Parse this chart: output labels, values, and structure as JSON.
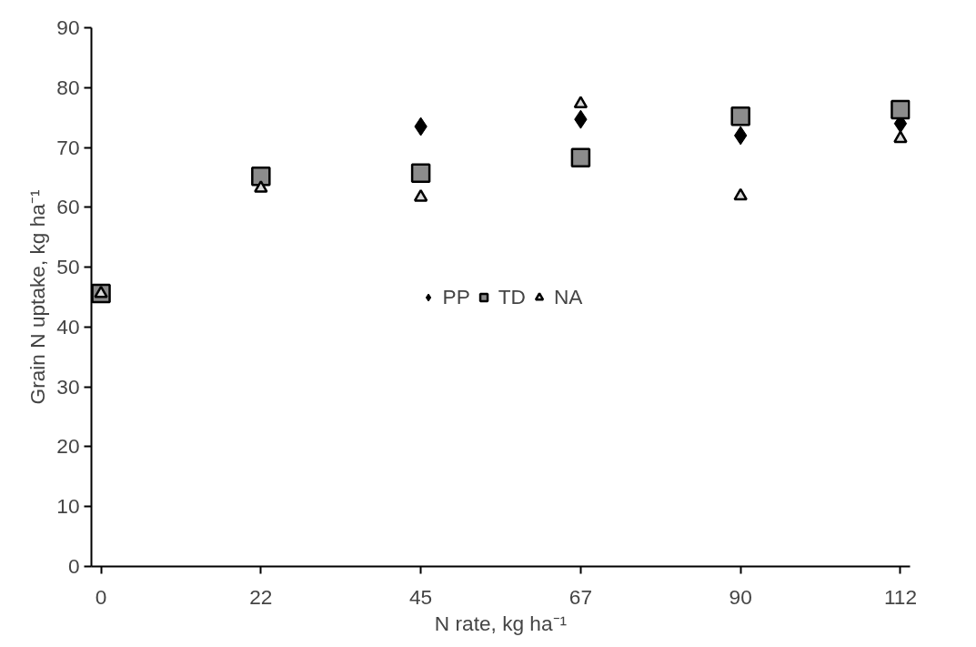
{
  "chart_data": {
    "type": "scatter",
    "xlabel": "N rate, kg ha⁻¹",
    "ylabel": "Grain N uptake, kg ha⁻¹",
    "categories": [
      "0",
      "22",
      "45",
      "67",
      "90",
      "112"
    ],
    "ylim": [
      0,
      90
    ],
    "yticks": [
      0,
      10,
      20,
      30,
      40,
      50,
      60,
      70,
      80,
      90
    ],
    "grid": false,
    "legend": "center",
    "series": [
      {
        "name": "PP",
        "color": "#000000",
        "marker": "diamond",
        "values": [
          null,
          null,
          73.5,
          74.7,
          72.0,
          74.0
        ]
      },
      {
        "name": "TD",
        "color": "#8c8c8c",
        "marker": "square",
        "values": [
          45.6,
          65.2,
          65.7,
          68.3,
          75.2,
          76.3
        ]
      },
      {
        "name": "NA",
        "color": "#d9d9d9",
        "marker": "triangle",
        "values": [
          45.6,
          63.2,
          61.7,
          77.3,
          61.9,
          71.5
        ]
      }
    ]
  }
}
